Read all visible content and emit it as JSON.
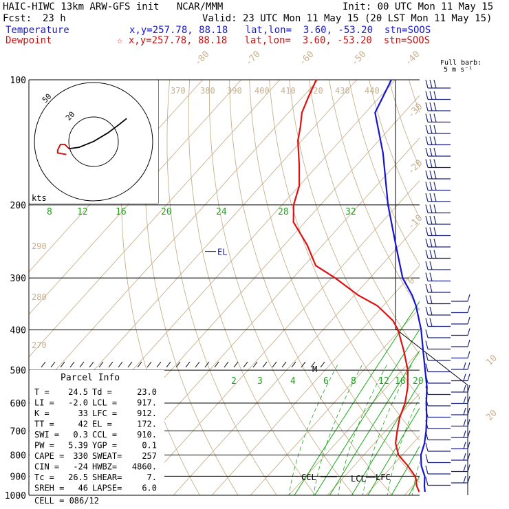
{
  "header": {
    "title": "HAIC-HIWC 13km ARW-GFS init   NCAR/MMM",
    "init": "Init: 00 UTC Mon 11 May 15",
    "fcst_label": "Fcst:",
    "fcst_value": "23 h",
    "valid": "Valid: 23 UTC Mon 11 May 15 (20 LST Mon 11 May 15)",
    "temp_label": "Temperature",
    "temp_info": "x,y=257.78, 88.18   lat,lon=  3.60, -53.20  stn=SOOS",
    "dew_label": "Dewpoint",
    "dew_info": "☆ x,y=257.78, 88.18   lat,lon=  3.60, -53.20  stn=SOOS"
  },
  "colors": {
    "temperature": "#1414d2",
    "dewpoint": "#e01010",
    "isotherm": "#c8b08c",
    "mixing_ratio": "#17a817",
    "isobar": "#000000"
  },
  "chart_data": {
    "type": "line",
    "title": "Skew-T log-P sounding",
    "ylabel": "Pressure (hPa)",
    "pressure_ticks": [
      "100",
      "200",
      "300",
      "400",
      "500",
      "600",
      "700",
      "800",
      "900",
      "1000"
    ],
    "isotherm_labels": [
      "-80",
      "-70",
      "-60",
      "-50",
      "-40",
      "-30",
      "-20",
      "-10",
      "0",
      "10",
      "20",
      "30",
      "40"
    ],
    "theta_labels": [
      "370",
      "380",
      "390",
      "400",
      "410",
      "420",
      "430",
      "440",
      "290",
      "280",
      "270"
    ],
    "mixing_ratio_top_labels": [
      "8",
      "12",
      "16",
      "20",
      "24",
      "28",
      "32"
    ],
    "mixing_ratio_low_labels": [
      "2",
      "3",
      "4",
      "6",
      "8",
      "12",
      "16",
      "20",
      "24"
    ],
    "series": [
      {
        "name": "Temperature",
        "pressure": [
          981,
          950,
          920,
          900,
          850,
          800,
          750,
          700,
          650,
          600,
          550,
          500,
          450,
          400,
          350,
          330,
          300,
          250,
          200,
          150,
          120,
          100
        ],
        "value": [
          24.5,
          23.0,
          21.7,
          20.8,
          17.5,
          14.8,
          13.0,
          10.5,
          7.5,
          4.0,
          0.5,
          -4.0,
          -9.0,
          -14.5,
          -21.5,
          -25.0,
          -31.5,
          -41.0,
          -52.5,
          -66.0,
          -77.5,
          -81.0
        ]
      },
      {
        "name": "Dewpoint",
        "pressure": [
          981,
          950,
          920,
          900,
          850,
          800,
          750,
          700,
          650,
          600,
          550,
          500,
          450,
          400,
          380,
          350,
          330,
          300,
          280,
          250,
          220,
          200,
          180,
          160,
          140,
          130,
          120,
          110,
          100
        ],
        "value": [
          23.0,
          21.0,
          19.5,
          18.3,
          14.0,
          9.0,
          5.5,
          3.0,
          0.5,
          -1.5,
          -4.5,
          -8.5,
          -14.0,
          -20.5,
          -24.0,
          -31.5,
          -39.0,
          -49.0,
          -57.0,
          -64.0,
          -73.0,
          -77.0,
          -80.0,
          -85.0,
          -91.0,
          -93.5,
          -96.5,
          -98.5,
          -100.5
        ]
      }
    ],
    "annotations": [
      "EL",
      "M",
      "CCL",
      "LCL",
      "LFC"
    ],
    "hodograph": {
      "units_label": "kts",
      "ring_labels": [
        "20",
        "50"
      ],
      "u": [
        3,
        -3,
        -3,
        -1,
        2,
        5,
        12,
        22,
        32,
        40,
        45
      ],
      "v": [
        -6,
        -5,
        -3,
        1,
        1,
        -2,
        -1,
        3,
        9,
        15,
        19
      ]
    },
    "wind_barb_label": "Full barb:",
    "wind_barb_units": "5 m s⁻¹"
  },
  "parcel_info": {
    "title": "Parcel Info",
    "rows": [
      [
        "T   =",
        "24.5",
        "Td =",
        "23.0"
      ],
      [
        "LI  =",
        "-2.0",
        "LCL =",
        "917."
      ],
      [
        "K   =",
        "33",
        "LFC =",
        "912."
      ],
      [
        "TT  =",
        "42",
        "EL  =",
        "172."
      ],
      [
        "SWI =",
        "0.3",
        "CCL =",
        "910."
      ],
      [
        "PW  =",
        "5.39",
        "YGP =",
        "0.1"
      ],
      [
        "CAPE =",
        "330",
        "SWEAT=",
        "257"
      ],
      [
        "CIN  =",
        "-24",
        "HWBZ=",
        "4860."
      ],
      [
        "Tc  =",
        "26.5",
        "SHEAR=",
        "7."
      ],
      [
        "SREH =",
        "46",
        "LAPSE=",
        "6.0"
      ]
    ],
    "cell": "CELL = 086/12"
  }
}
